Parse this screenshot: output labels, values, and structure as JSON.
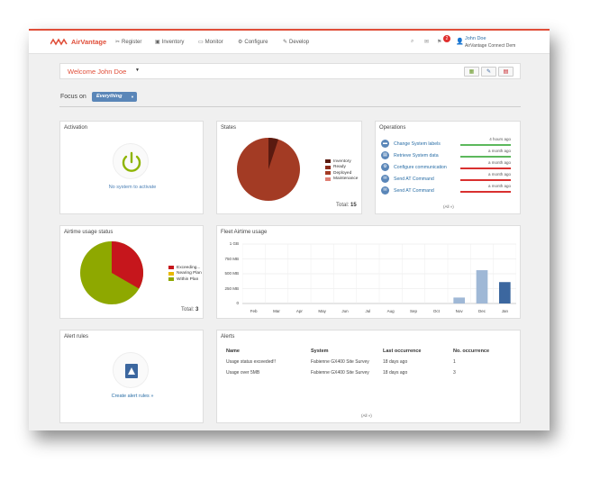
{
  "app": {
    "brand": "AirVantage"
  },
  "nav": [
    {
      "icon": "register-icon",
      "label": "Register"
    },
    {
      "icon": "inventory-icon",
      "label": "Inventory"
    },
    {
      "icon": "monitor-icon",
      "label": "Monitor"
    },
    {
      "icon": "configure-icon",
      "label": "Configure"
    },
    {
      "icon": "develop-icon",
      "label": "Develop"
    }
  ],
  "header": {
    "notification_count": "2",
    "user_name": "John Doe",
    "company": "AirVantage Connect Dem"
  },
  "welcome": {
    "text": "Welcome John Doe"
  },
  "focus": {
    "label": "Focus on",
    "value": "Everything"
  },
  "activation": {
    "title": "Activation",
    "message": "No system to activate"
  },
  "states": {
    "title": "States",
    "legend": [
      "Inventory",
      "Ready",
      "Deployed",
      "Maintenance"
    ],
    "colors": [
      "#5a1a10",
      "#8b2a1a",
      "#a33b24",
      "#e07f73"
    ],
    "total_label": "Total:",
    "total_value": "15"
  },
  "operations": {
    "title": "Operations",
    "items": [
      {
        "label": "Change System labels",
        "time": "4 hours ago",
        "status": "success"
      },
      {
        "label": "Retrieve System data",
        "time": "a month ago",
        "status": "success"
      },
      {
        "label": "Configure communication",
        "time": "a month ago",
        "status": "failure"
      },
      {
        "label": "Send AT Command",
        "time": "a month ago",
        "status": "failure"
      },
      {
        "label": "Send AT Command",
        "time": "a month ago",
        "status": "failure"
      }
    ],
    "all_link": "(All »)"
  },
  "airtime_status": {
    "title": "Airtime usage status",
    "legend": [
      "Exceeding...",
      "Nearing Plan",
      "Within Plan"
    ],
    "colors": [
      "#c6161c",
      "#e8b800",
      "#8ea800"
    ],
    "total_label": "Total:",
    "total_value": "3"
  },
  "chart_data": {
    "type": "bar",
    "title": "Fleet Airtime usage",
    "categories": [
      "Feb",
      "Mar",
      "Apr",
      "May",
      "Jun",
      "Jul",
      "Aug",
      "Sep",
      "Oct",
      "Nov",
      "Dec",
      "Jan"
    ],
    "values": [
      0,
      0,
      0,
      0,
      0,
      0,
      0,
      0,
      0,
      100,
      560,
      360
    ],
    "y_ticks": [
      "0",
      "250 MB",
      "500 MB",
      "750 MB",
      "1 GB"
    ],
    "ylim": [
      0,
      1000
    ],
    "grid": true,
    "colors": [
      "#9fb8d6",
      "#9fb8d6",
      "#3c679f"
    ]
  },
  "alert_rules": {
    "title": "Alert rules",
    "link": "Create alert rules »"
  },
  "alerts": {
    "title": "Alerts",
    "columns": [
      "Name",
      "System",
      "Last occurrence",
      "No. occurrence"
    ],
    "rows": [
      [
        "Usage status exceeded!!",
        "Fabienne GX400 Site Survey",
        "18 days ago",
        "1"
      ],
      [
        "Usage over 5MB",
        "Fabienne GX400 Site Survey",
        "18 days ago",
        "3"
      ]
    ],
    "all_link": "(All »)"
  }
}
